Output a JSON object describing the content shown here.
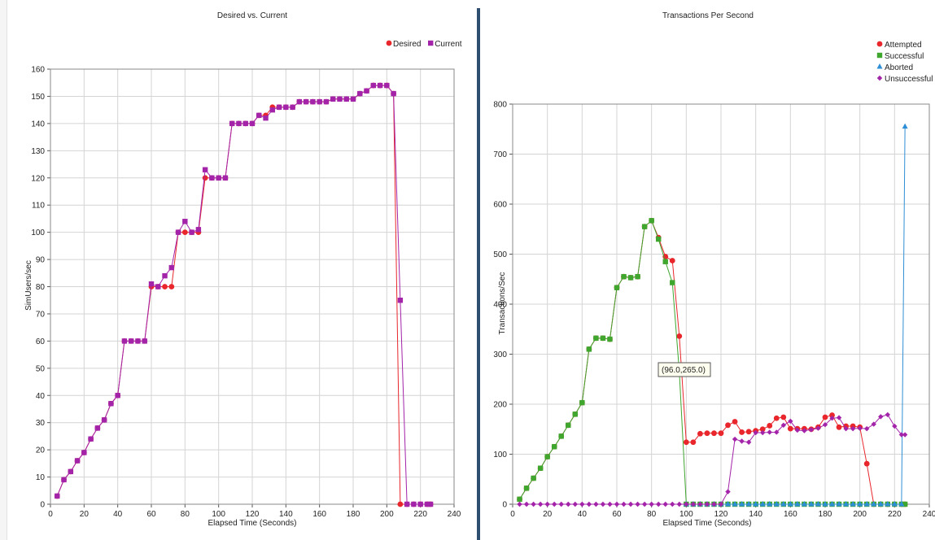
{
  "chart_data": [
    {
      "type": "line",
      "title": "Desired vs. Current",
      "xlabel": "Elapsed Time (Seconds)",
      "ylabel": "SimUsers/sec",
      "xlim": [
        0,
        240
      ],
      "ylim": [
        0,
        160
      ],
      "xticks": [
        0,
        20,
        40,
        60,
        80,
        100,
        120,
        140,
        160,
        180,
        200,
        220,
        240
      ],
      "yticks": [
        0,
        10,
        20,
        30,
        40,
        50,
        60,
        70,
        80,
        90,
        100,
        110,
        120,
        130,
        140,
        150,
        160
      ],
      "grid": true,
      "legend_position": "top-right",
      "series": [
        {
          "name": "Desired",
          "color": "#e8262b",
          "marker": "circle",
          "x": [
            4,
            8,
            12,
            16,
            20,
            24,
            28,
            32,
            36,
            40,
            44,
            48,
            52,
            56,
            60,
            64,
            68,
            72,
            76,
            80,
            84,
            88,
            92,
            96,
            100,
            104,
            108,
            112,
            116,
            120,
            124,
            128,
            132,
            136,
            140,
            144,
            148,
            152,
            156,
            160,
            164,
            168,
            172,
            176,
            180,
            184,
            188,
            192,
            196,
            200,
            204,
            208,
            212,
            216,
            220,
            224,
            226
          ],
          "y": [
            3,
            9,
            12,
            16,
            19,
            24,
            28,
            31,
            37,
            40,
            60,
            60,
            60,
            60,
            80,
            80,
            80,
            80,
            100,
            100,
            100,
            100,
            120,
            120,
            120,
            120,
            140,
            140,
            140,
            140,
            143,
            143,
            146,
            146,
            146,
            146,
            148,
            148,
            148,
            148,
            148,
            149,
            149,
            149,
            149,
            151,
            152,
            154,
            154,
            154,
            151,
            0,
            0,
            0,
            0,
            0,
            0
          ]
        },
        {
          "name": "Current",
          "color": "#a323a9",
          "marker": "square",
          "x": [
            4,
            8,
            12,
            16,
            20,
            24,
            28,
            32,
            36,
            40,
            44,
            48,
            52,
            56,
            60,
            64,
            68,
            72,
            76,
            80,
            84,
            88,
            92,
            96,
            100,
            104,
            108,
            112,
            116,
            120,
            124,
            128,
            132,
            136,
            140,
            144,
            148,
            152,
            156,
            160,
            164,
            168,
            172,
            176,
            180,
            184,
            188,
            192,
            196,
            200,
            204,
            208,
            212,
            216,
            220,
            224,
            226
          ],
          "y": [
            3,
            9,
            12,
            16,
            19,
            24,
            28,
            31,
            37,
            40,
            60,
            60,
            60,
            60,
            81,
            80,
            84,
            87,
            100,
            104,
            100,
            101,
            123,
            120,
            120,
            120,
            140,
            140,
            140,
            140,
            143,
            142,
            145,
            146,
            146,
            146,
            148,
            148,
            148,
            148,
            148,
            149,
            149,
            149,
            149,
            151,
            152,
            154,
            154,
            154,
            151,
            75,
            0,
            0,
            0,
            0,
            0
          ]
        }
      ]
    },
    {
      "type": "line",
      "title": "Transactions Per Second",
      "xlabel": "Elapsed Time (Seconds)",
      "ylabel": "Transactions/Sec",
      "xlim": [
        0,
        240
      ],
      "ylim": [
        0,
        800
      ],
      "xticks": [
        0,
        20,
        40,
        60,
        80,
        100,
        120,
        140,
        160,
        180,
        200,
        220,
        240
      ],
      "yticks": [
        0,
        100,
        200,
        300,
        400,
        500,
        600,
        700,
        800
      ],
      "grid": true,
      "legend_position": "top-right",
      "tooltip": "(96.0,265.0)",
      "series": [
        {
          "name": "Attempted",
          "color": "#e8262b",
          "marker": "circle",
          "x": [
            4,
            8,
            12,
            16,
            20,
            24,
            28,
            32,
            36,
            40,
            44,
            48,
            52,
            56,
            60,
            64,
            68,
            72,
            76,
            80,
            84,
            88,
            92,
            96,
            100,
            104,
            108,
            112,
            116,
            120,
            124,
            128,
            132,
            136,
            140,
            144,
            148,
            152,
            156,
            160,
            164,
            168,
            172,
            176,
            180,
            184,
            188,
            192,
            196,
            200,
            204,
            208,
            212,
            216,
            220,
            224,
            226
          ],
          "y": [
            10,
            32,
            52,
            72,
            95,
            115,
            136,
            158,
            180,
            203,
            310,
            332,
            332,
            330,
            433,
            455,
            453,
            455,
            555,
            567,
            533,
            495,
            487,
            336,
            124,
            124,
            141,
            142,
            142,
            142,
            158,
            165,
            144,
            145,
            147,
            150,
            157,
            172,
            174,
            151,
            151,
            151,
            150,
            154,
            174,
            178,
            154,
            156,
            156,
            154,
            81,
            0,
            0,
            0,
            0,
            0,
            0
          ]
        },
        {
          "name": "Successful",
          "color": "#3fa62e",
          "marker": "square",
          "x": [
            4,
            8,
            12,
            16,
            20,
            24,
            28,
            32,
            36,
            40,
            44,
            48,
            52,
            56,
            60,
            64,
            68,
            72,
            76,
            80,
            84,
            88,
            92,
            96,
            100,
            104,
            108,
            112,
            116,
            120,
            124,
            128,
            132,
            136,
            140,
            144,
            148,
            152,
            156,
            160,
            164,
            168,
            172,
            176,
            180,
            184,
            188,
            192,
            196,
            200,
            204,
            208,
            212,
            216,
            220,
            224,
            226
          ],
          "y": [
            10,
            32,
            52,
            72,
            95,
            115,
            136,
            158,
            180,
            203,
            310,
            332,
            332,
            330,
            433,
            455,
            453,
            455,
            555,
            567,
            530,
            485,
            443,
            265,
            0,
            0,
            0,
            0,
            0,
            0,
            0,
            0,
            0,
            0,
            0,
            0,
            0,
            0,
            0,
            0,
            0,
            0,
            0,
            0,
            0,
            0,
            0,
            0,
            0,
            0,
            0,
            0,
            0,
            0,
            0,
            0,
            0
          ]
        },
        {
          "name": "Aborted",
          "color": "#2f8fd6",
          "marker": "triangle",
          "x": [
            100,
            104,
            108,
            112,
            116,
            120,
            124,
            128,
            132,
            136,
            140,
            144,
            148,
            152,
            156,
            160,
            164,
            168,
            172,
            176,
            180,
            184,
            188,
            192,
            196,
            200,
            204,
            208,
            212,
            216,
            220,
            224,
            226
          ],
          "y": [
            0,
            0,
            0,
            0,
            0,
            0,
            0,
            0,
            0,
            0,
            0,
            0,
            0,
            0,
            0,
            0,
            0,
            0,
            0,
            0,
            0,
            0,
            0,
            0,
            0,
            0,
            0,
            0,
            0,
            0,
            0,
            0,
            755
          ]
        },
        {
          "name": "Unsuccessful",
          "color": "#a323a9",
          "marker": "diamond",
          "x": [
            4,
            8,
            12,
            16,
            20,
            24,
            28,
            32,
            36,
            40,
            44,
            48,
            52,
            56,
            60,
            64,
            68,
            72,
            76,
            80,
            84,
            88,
            92,
            96,
            100,
            104,
            108,
            112,
            116,
            120,
            124,
            128,
            132,
            136,
            140,
            144,
            148,
            152,
            156,
            160,
            164,
            168,
            172,
            176,
            180,
            184,
            188,
            192,
            196,
            200,
            204,
            208,
            212,
            216,
            220,
            224,
            226
          ],
          "y": [
            0,
            0,
            0,
            0,
            0,
            0,
            0,
            0,
            0,
            0,
            0,
            0,
            0,
            0,
            0,
            0,
            0,
            0,
            0,
            0,
            0,
            0,
            0,
            0,
            0,
            0,
            0,
            0,
            0,
            0,
            25,
            130,
            126,
            124,
            143,
            143,
            144,
            144,
            158,
            166,
            148,
            147,
            149,
            152,
            159,
            172,
            173,
            151,
            151,
            152,
            151,
            160,
            175,
            179,
            156,
            139,
            139
          ]
        }
      ]
    }
  ]
}
